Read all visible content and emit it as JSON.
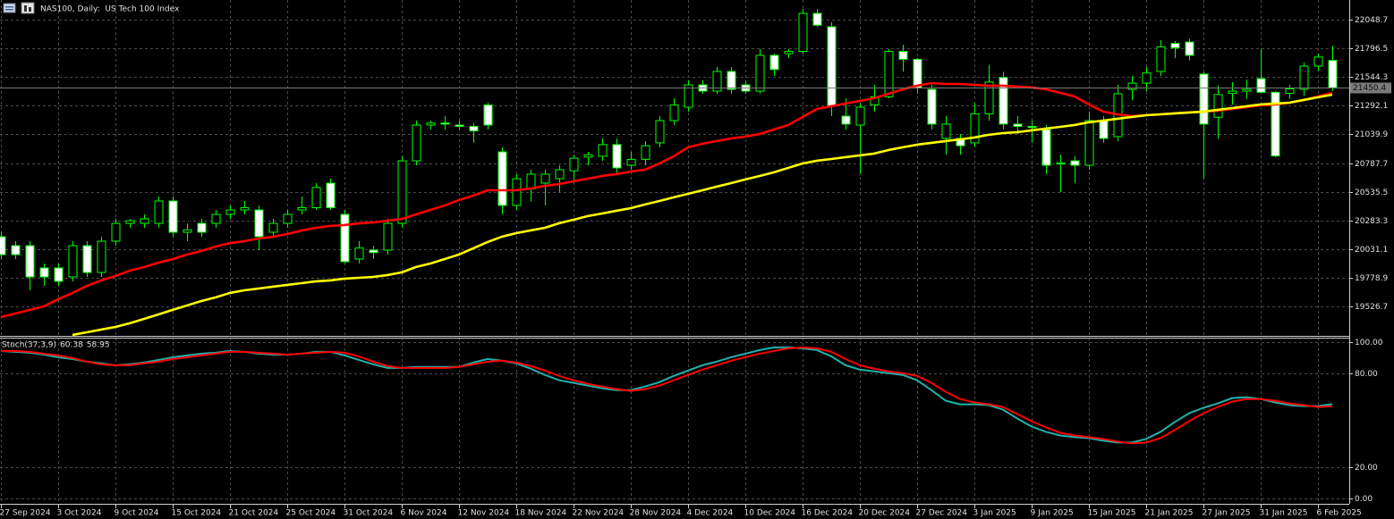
{
  "chart_data": [
    {
      "type": "candlestick",
      "title": "NAS100, Daily:  US Tech 100 Index",
      "categories": [
        "27 Sep 2024",
        null,
        null,
        null,
        "3 Oct 2024",
        null,
        null,
        null,
        "9 Oct 2024",
        null,
        null,
        null,
        "15 Oct 2024",
        null,
        null,
        null,
        "21 Oct 2024",
        null,
        null,
        null,
        "25 Oct 2024",
        null,
        null,
        null,
        "31 Oct 2024",
        null,
        null,
        null,
        "6 Nov 2024",
        null,
        null,
        null,
        "12 Nov 2024",
        null,
        null,
        null,
        "18 Nov 2024",
        null,
        null,
        null,
        "22 Nov 2024",
        null,
        null,
        null,
        "28 Nov 2024",
        null,
        null,
        null,
        "4 Dec 2024",
        null,
        null,
        null,
        "10 Dec 2024",
        null,
        null,
        null,
        "16 Dec 2024",
        null,
        null,
        null,
        "20 Dec 2024",
        null,
        null,
        null,
        "27 Dec 2024",
        null,
        null,
        null,
        "3 Jan 2025",
        null,
        null,
        null,
        "9 Jan 2025",
        null,
        null,
        null,
        "15 Jan 2025",
        null,
        null,
        null,
        "21 Jan 2025",
        null,
        null,
        null,
        "27 Jan 2025",
        null,
        null,
        null,
        "31 Jan 2025",
        null,
        null,
        null,
        "6 Feb 2025",
        null
      ],
      "open": [
        20140,
        20061,
        20061,
        19865,
        19865,
        19786,
        20061,
        19825,
        20100,
        20257,
        20257,
        20257,
        20454,
        20179,
        20257,
        20257,
        20336,
        20375,
        20375,
        20179,
        20257,
        20375,
        20395,
        20611,
        20336,
        19943,
        20022,
        20022,
        20257,
        20807,
        21122,
        21140,
        21122,
        21110,
        21298,
        20886,
        20415,
        20560,
        20611,
        20650,
        20720,
        20840,
        20847,
        20950,
        20768,
        20820,
        20965,
        21161,
        21279,
        21475,
        21420,
        21593,
        21475,
        21420,
        21735,
        21750,
        21770,
        22104,
        21986,
        21200,
        21122,
        21300,
        21370,
        21770,
        21700,
        21436,
        21004,
        21004,
        20965,
        21220,
        21540,
        21130,
        21110,
        21082,
        20780,
        20807,
        20768,
        21161,
        21020,
        21436,
        21490,
        21593,
        21840,
        21852,
        21570,
        21190,
        21400,
        21420,
        21530,
        21410,
        21400,
        21436,
        21640,
        21690
      ],
      "high": [
        20179,
        20100,
        20100,
        19904,
        19904,
        20100,
        20100,
        20140,
        20297,
        20297,
        20336,
        20493,
        20493,
        20257,
        20297,
        20375,
        20415,
        20454,
        20415,
        20297,
        20375,
        20493,
        20611,
        20650,
        20375,
        20100,
        20061,
        20297,
        20847,
        21161,
        21161,
        21200,
        21161,
        21140,
        21318,
        20925,
        20690,
        20729,
        20729,
        20768,
        20860,
        20886,
        21004,
        21004,
        20886,
        20980,
        21200,
        21357,
        21514,
        21514,
        21632,
        21632,
        21514,
        21790,
        21750,
        21790,
        22143,
        22143,
        22025,
        21357,
        21318,
        21475,
        21790,
        21829,
        21711,
        21475,
        21200,
        21043,
        21318,
        21650,
        21590,
        21200,
        21160,
        21122,
        20860,
        20847,
        21240,
        21200,
        21475,
        21554,
        21632,
        21870,
        21860,
        21880,
        21590,
        21470,
        21500,
        21520,
        21790,
        21420,
        21475,
        21672,
        21750,
        21820
      ],
      "low": [
        19943,
        19943,
        19668,
        19707,
        19707,
        19747,
        19786,
        19786,
        20061,
        20218,
        20218,
        20218,
        20140,
        20100,
        20140,
        20218,
        20297,
        20336,
        20022,
        20140,
        20218,
        20336,
        20375,
        20375,
        19904,
        19904,
        19943,
        19982,
        20218,
        20768,
        21082,
        21082,
        21082,
        20965,
        21082,
        20336,
        20375,
        20450,
        20415,
        20530,
        20611,
        20768,
        20807,
        20690,
        20729,
        20768,
        20925,
        21122,
        21240,
        21397,
        21397,
        21397,
        21397,
        21400,
        21554,
        21711,
        21750,
        21986,
        21200,
        21082,
        20690,
        21240,
        21357,
        21590,
        21400,
        21082,
        20860,
        20860,
        20925,
        21160,
        21082,
        21043,
        20965,
        20690,
        20530,
        20611,
        20729,
        20965,
        20980,
        21340,
        21420,
        21554,
        21710,
        21690,
        20650,
        21000,
        21300,
        21350,
        21400,
        20840,
        21350,
        21380,
        21600,
        21420
      ],
      "close": [
        19982,
        19982,
        19786,
        19786,
        19747,
        20061,
        19825,
        20100,
        20257,
        20280,
        20297,
        20454,
        20179,
        20200,
        20179,
        20336,
        20375,
        20395,
        20140,
        20257,
        20336,
        20395,
        20572,
        20395,
        19920,
        20040,
        20000,
        20257,
        20807,
        21122,
        21140,
        21130,
        21110,
        21070,
        21122,
        20415,
        20650,
        20690,
        20690,
        20729,
        20830,
        20860,
        20950,
        20745,
        20820,
        20940,
        21161,
        21298,
        21475,
        21420,
        21593,
        21436,
        21420,
        21735,
        21610,
        21770,
        22104,
        22000,
        21290,
        21130,
        21279,
        21370,
        21770,
        21700,
        21450,
        21130,
        21130,
        20940,
        21220,
        21500,
        21130,
        21110,
        21100,
        20768,
        20790,
        20768,
        21161,
        21004,
        21397,
        21490,
        21580,
        21810,
        21800,
        21735,
        21130,
        21390,
        21420,
        21436,
        21410,
        20850,
        21440,
        21640,
        21720,
        21450.4
      ],
      "up_color": "#000000",
      "down_color": "#ffffff",
      "wick_color": "#00ff00",
      "series": [
        {
          "color": "#ff0000",
          "values": [
            19432,
            19464,
            19495,
            19527,
            19590,
            19645,
            19707,
            19755,
            19794,
            19841,
            19872,
            19912,
            19943,
            19982,
            20014,
            20053,
            20084,
            20100,
            20124,
            20139,
            20163,
            20194,
            20218,
            20234,
            20242,
            20257,
            20265,
            20281,
            20296,
            20336,
            20375,
            20414,
            20462,
            20501,
            20548,
            20548,
            20548,
            20564,
            20587,
            20603,
            20627,
            20650,
            20674,
            20690,
            20713,
            20729,
            20784,
            20847,
            20926,
            20957,
            20981,
            21004,
            21020,
            21043,
            21083,
            21122,
            21193,
            21263,
            21287,
            21311,
            21334,
            21358,
            21397,
            21436,
            21468,
            21491,
            21483,
            21483,
            21476,
            21468,
            21468,
            21460,
            21452,
            21436,
            21405,
            21373,
            21303,
            21240,
            21216,
            21201,
            21208,
            21216,
            21224,
            21232,
            21240,
            21248,
            21263,
            21279,
            21295,
            21303,
            21318,
            21342,
            21373,
            21405
          ]
        },
        {
          "color": "#ffff00",
          "values": [
            null,
            null,
            null,
            null,
            null,
            19276,
            19299,
            19323,
            19346,
            19378,
            19417,
            19456,
            19496,
            19535,
            19574,
            19606,
            19645,
            19668,
            19684,
            19700,
            19716,
            19731,
            19747,
            19755,
            19771,
            19778,
            19786,
            19802,
            19826,
            19873,
            19904,
            19943,
            19983,
            20038,
            20093,
            20140,
            20171,
            20195,
            20218,
            20258,
            20289,
            20321,
            20344,
            20368,
            20391,
            20423,
            20454,
            20486,
            20517,
            20548,
            20580,
            20611,
            20643,
            20674,
            20706,
            20745,
            20784,
            20808,
            20823,
            20839,
            20855,
            20871,
            20902,
            20926,
            20949,
            20965,
            20981,
            20996,
            21012,
            21036,
            21051,
            21059,
            21075,
            21091,
            21106,
            21122,
            21146,
            21161,
            21177,
            21193,
            21208,
            21216,
            21224,
            21232,
            21240,
            21256,
            21271,
            21287,
            21303,
            21311,
            21318,
            21342,
            21366,
            21389
          ]
        }
      ],
      "ylim": [
        19267.4,
        22221.6
      ],
      "yticks": [
        19526.7,
        19778.9,
        20031.1,
        20283.3,
        20535.5,
        20787.7,
        21039.9,
        21292.1,
        21544.3,
        21796.5,
        22048.7
      ],
      "grid": true
    },
    {
      "type": "line",
      "title": "Stoch(37,3,9)",
      "series": [
        {
          "color": "#20b2aa",
          "values": [
            94.3,
            93.8,
            93.2,
            92.0,
            90.3,
            89.2,
            87.5,
            86.4,
            85.2,
            85.8,
            86.9,
            88.6,
            90.3,
            91.5,
            92.6,
            93.2,
            94.3,
            93.8,
            92.6,
            92.0,
            92.0,
            92.6,
            93.8,
            93.8,
            91.5,
            88.6,
            85.8,
            83.5,
            83.5,
            84.1,
            84.1,
            84.1,
            84.1,
            86.9,
            89.2,
            88.1,
            86.4,
            83.0,
            79.0,
            75.6,
            73.9,
            72.2,
            70.5,
            69.3,
            69.3,
            71.6,
            74.4,
            78.4,
            81.8,
            85.2,
            87.5,
            90.3,
            92.6,
            94.9,
            96.6,
            96.6,
            96.0,
            94.9,
            90.9,
            85.2,
            82.4,
            81.3,
            80.1,
            79.0,
            75.6,
            69.3,
            62.5,
            60.2,
            60.2,
            59.7,
            56.8,
            51.1,
            46.0,
            42.6,
            40.3,
            39.2,
            38.6,
            36.9,
            35.8,
            35.8,
            38.1,
            42.6,
            48.9,
            54.5,
            58.0,
            60.8,
            64.2,
            64.8,
            63.6,
            61.4,
            59.7,
            59.1,
            59.1,
            60.38
          ]
        },
        {
          "color": "#ff0000",
          "values": [
            94.3,
            94.3,
            93.8,
            92.6,
            91.5,
            89.8,
            87.5,
            85.8,
            85.2,
            85.2,
            86.4,
            87.5,
            89.2,
            90.3,
            91.5,
            92.6,
            93.8,
            93.8,
            93.2,
            92.6,
            92.0,
            92.6,
            93.2,
            93.8,
            93.2,
            90.9,
            87.5,
            84.7,
            83.5,
            83.5,
            83.5,
            83.5,
            84.1,
            85.8,
            87.5,
            88.1,
            86.9,
            84.7,
            81.8,
            78.4,
            75.6,
            73.3,
            71.6,
            69.9,
            68.8,
            69.9,
            72.2,
            75.6,
            79.0,
            82.4,
            85.2,
            88.1,
            90.3,
            92.6,
            94.3,
            96.0,
            96.6,
            96.0,
            93.8,
            89.2,
            85.2,
            83.0,
            81.3,
            80.1,
            78.4,
            73.9,
            68.2,
            63.6,
            61.4,
            60.2,
            58.5,
            54.0,
            49.4,
            45.5,
            42.0,
            40.3,
            39.2,
            38.1,
            36.4,
            35.2,
            35.8,
            38.6,
            43.8,
            49.4,
            54.5,
            58.5,
            61.9,
            63.6,
            63.6,
            62.5,
            60.8,
            59.7,
            58.5,
            58.95
          ]
        }
      ],
      "ylim": [
        -2.84,
        102.84
      ],
      "yticks": [
        {
          "value": 0,
          "label": "0.00"
        },
        {
          "value": 20,
          "label": "20.00"
        },
        {
          "value": 80,
          "label": "80.00"
        },
        {
          "value": 100,
          "label": "100.00"
        }
      ],
      "grid": true
    }
  ]
}
